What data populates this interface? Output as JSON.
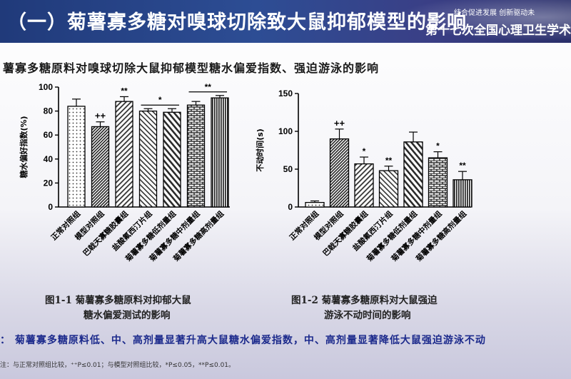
{
  "header": {
    "title": "（一）菊薯寡多糖对嗅球切除致大鼠抑郁模型的影响",
    "slogan": "结合促进发展   创新驱动未",
    "conference": "第十七次全国心理卫生学术"
  },
  "section_heading": "薯寡多糖原料对嗅球切除大鼠抑郁模型糖水偏爱指数、强迫游泳的影响",
  "chart_data": [
    {
      "type": "bar",
      "title": "",
      "ylabel": "糖水偏好指数(%)",
      "xlabel": "",
      "ylim": [
        0,
        100
      ],
      "yticks": [
        0,
        20,
        40,
        60,
        80,
        100
      ],
      "categories": [
        "正常对照组",
        "模型对照组",
        "巴戟天寡糖胶囊组",
        "盐酸氟西汀片组",
        "菊薯寡多糖低剂量组",
        "菊薯寡多糖中剂量组",
        "菊薯寡多糖高剂量组"
      ],
      "values": [
        84,
        67,
        88,
        80,
        79,
        85,
        91
      ],
      "errors": [
        6,
        4,
        4,
        2,
        3,
        3,
        2
      ],
      "annotations": [
        "",
        "++",
        "**",
        "",
        "",
        "",
        ""
      ],
      "bracket_labels": [
        {
          "label": "*",
          "from": 3,
          "to": 4
        },
        {
          "label": "**",
          "from": 5,
          "to": 6
        }
      ],
      "patterns": [
        "dots",
        "stripe-dense",
        "diag-right",
        "diag-left",
        "diag-left-wide",
        "brick",
        "vlines"
      ],
      "grid": false,
      "legend": "none"
    },
    {
      "type": "bar",
      "title": "",
      "ylabel": "不动时间(s)",
      "xlabel": "",
      "ylim": [
        0,
        150
      ],
      "yticks": [
        0,
        50,
        100,
        150
      ],
      "categories": [
        "正常对照组",
        "模型对照组",
        "巴戟天寡糖胶囊组",
        "盐酸氟西汀片组",
        "菊薯寡多糖低剂量组",
        "菊薯寡多糖中剂量组",
        "菊薯寡多糖高剂量组"
      ],
      "values": [
        6,
        90,
        57,
        48,
        86,
        65,
        36
      ],
      "errors": [
        2,
        13,
        9,
        6,
        13,
        8,
        11
      ],
      "annotations": [
        "",
        "++",
        "*",
        "**",
        "",
        "*",
        "**"
      ],
      "patterns": [
        "dots",
        "stripe-dense",
        "diag-right",
        "diag-left",
        "diag-left-wide",
        "brick",
        "vlines"
      ],
      "grid": false,
      "legend": "none"
    }
  ],
  "captions": {
    "fig1_line1": "图1-1   菊薯寡多糖原料对抑郁大鼠",
    "fig1_line2": "糖水偏爱测试的影响",
    "fig2_line1": "图1-2  菊薯寡多糖原料对大鼠强迫",
    "fig2_line2": "游泳不动时间的影响"
  },
  "conclusion": "：  菊薯寡多糖原料低、中、高剂量显著升高大鼠糖水偏爱指数，中、高剂量显著降低大鼠强迫游泳不动",
  "footnote": "注：与正常对照组比较，⁺⁺P≤0.01；与模型对照组比较，*P≤0.05，**P≤0.01。",
  "colors": {
    "header_bg": "#2d4d94",
    "conclusion_text": "#1c2a8c"
  }
}
